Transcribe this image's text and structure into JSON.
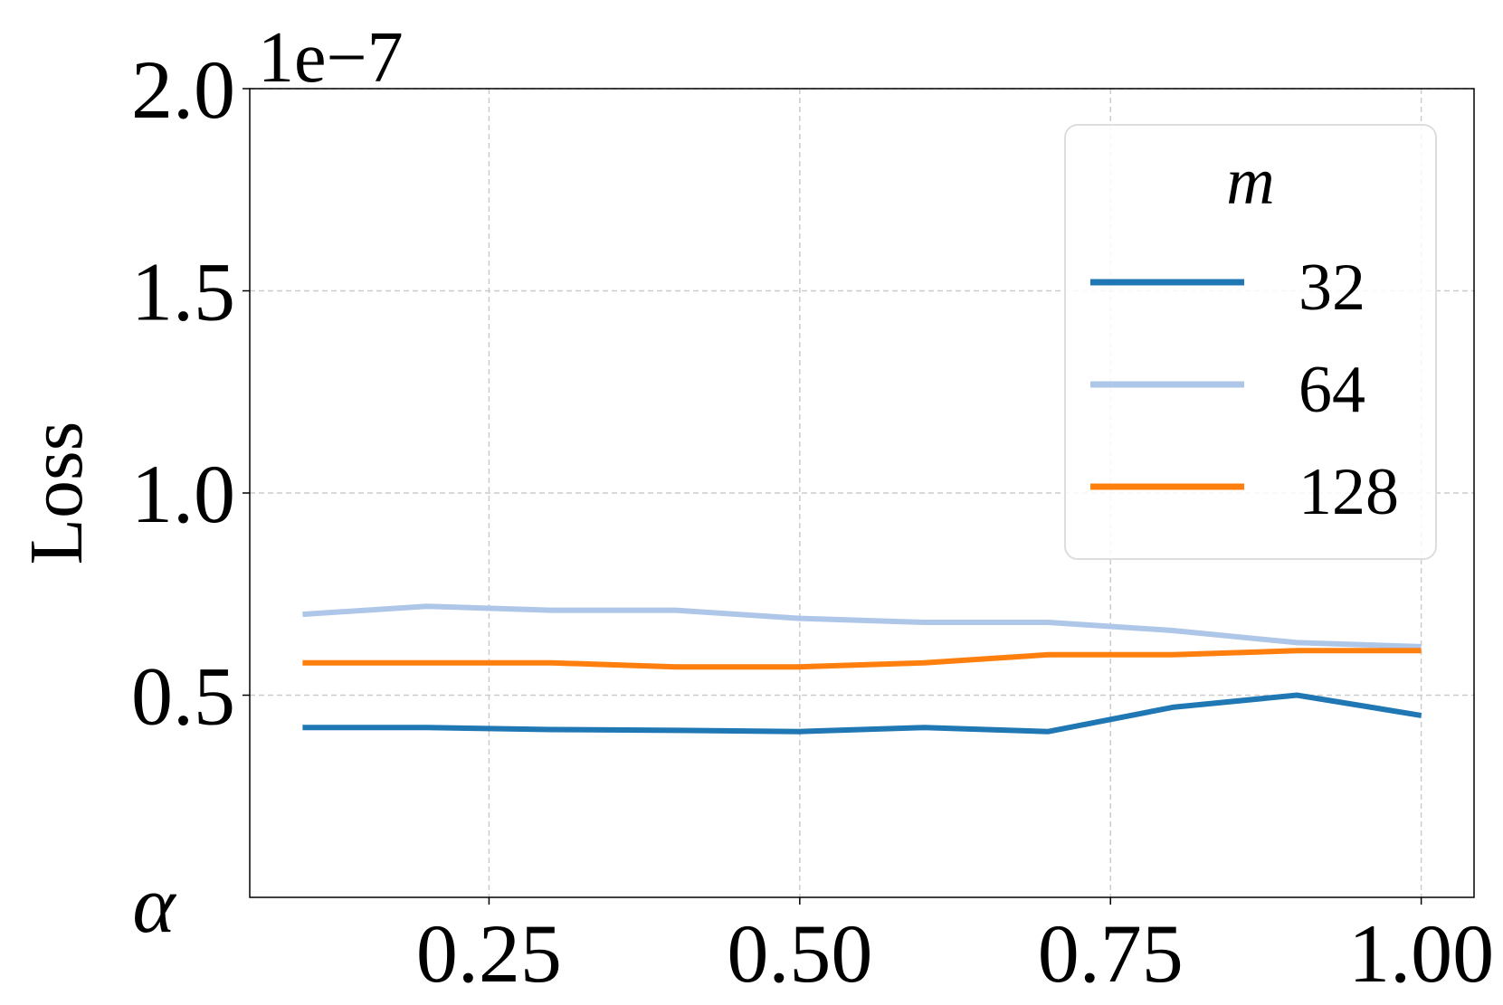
{
  "chart_data": {
    "type": "line",
    "xlabel": "α",
    "ylabel": "Loss",
    "offset_text": "1e−7",
    "xlim": [
      0.0575,
      1.0425
    ],
    "ylim": [
      0.0,
      2.0
    ],
    "x_ticks": [
      0.25,
      0.5,
      0.75,
      1.0
    ],
    "x_tick_labels": [
      "0.25",
      "0.50",
      "0.75",
      "1.00"
    ],
    "y_ticks": [
      0.5,
      1.0,
      1.5,
      2.0
    ],
    "y_tick_labels": [
      "0.5",
      "1.0",
      "1.5",
      "2.0"
    ],
    "grid": true,
    "legend": {
      "title": "m",
      "placement": "top-right"
    },
    "x": [
      0.1,
      0.2,
      0.3,
      0.4,
      0.5,
      0.6,
      0.7,
      0.8,
      0.9,
      1.0
    ],
    "series": [
      {
        "name": "32",
        "color": "#1f77b4",
        "values": [
          0.42,
          0.42,
          0.415,
          0.413,
          0.41,
          0.42,
          0.41,
          0.47,
          0.5,
          0.45
        ]
      },
      {
        "name": "64",
        "color": "#aec7e8",
        "values": [
          0.7,
          0.72,
          0.71,
          0.71,
          0.69,
          0.68,
          0.68,
          0.66,
          0.63,
          0.62
        ]
      },
      {
        "name": "128",
        "color": "#ff7f0e",
        "values": [
          0.58,
          0.58,
          0.58,
          0.57,
          0.57,
          0.58,
          0.6,
          0.6,
          0.61,
          0.61
        ]
      }
    ]
  }
}
